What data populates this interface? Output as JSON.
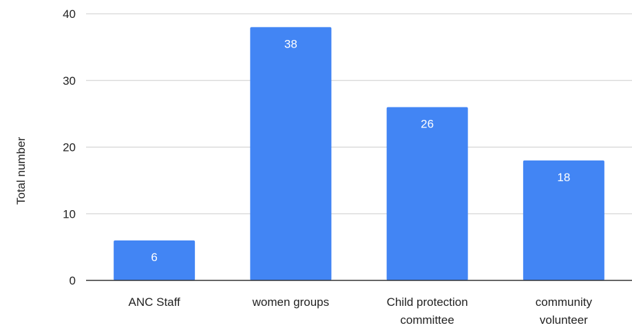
{
  "chart_data": {
    "type": "bar",
    "categories": [
      [
        "ANC Staff"
      ],
      [
        "women groups"
      ],
      [
        "Child protection",
        "committee"
      ],
      [
        "community",
        "volunteer"
      ]
    ],
    "values": [
      6,
      38,
      26,
      18
    ],
    "title": "",
    "xlabel": "",
    "ylabel": "Total number",
    "ylim": [
      0,
      40
    ],
    "yticks": [
      0,
      10,
      20,
      30,
      40
    ],
    "grid": true,
    "legend": "none",
    "data_labels": true,
    "bar_color": "#4285f4",
    "label_color": "#ffffff"
  }
}
